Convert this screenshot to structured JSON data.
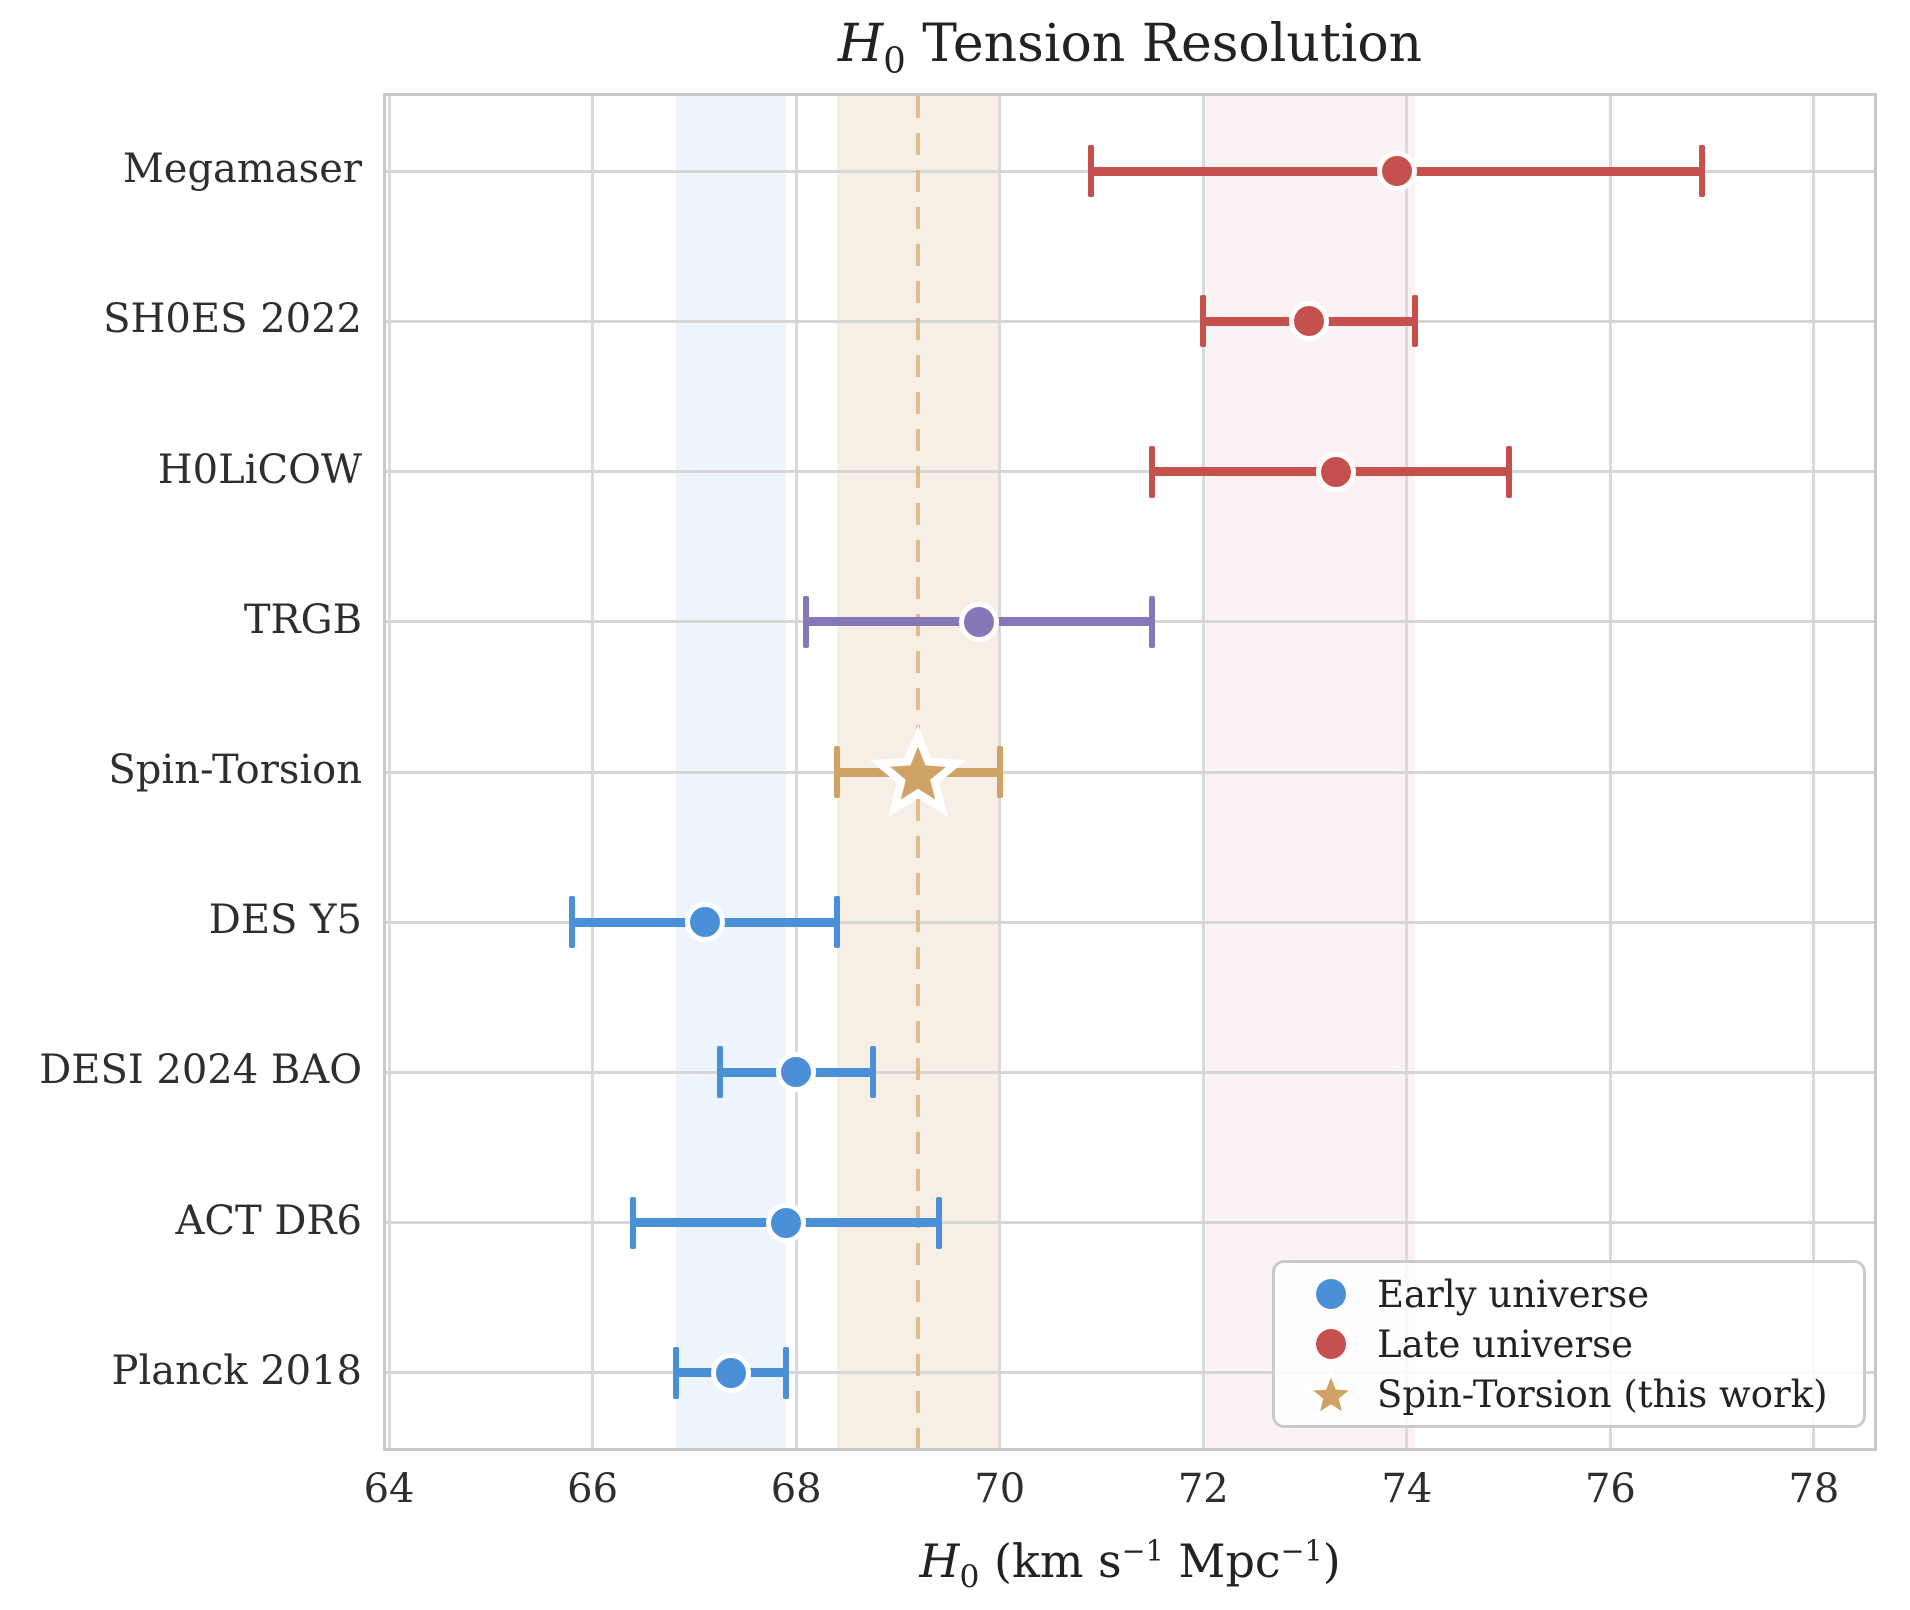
{
  "chart_data": {
    "type": "scatter",
    "title": {
      "h": "H",
      "sub": "0",
      "rest": " Tension Resolution"
    },
    "xlabel": {
      "h": "H",
      "sub": "0",
      "p1": " (km s",
      "sup1": "−1",
      "p2": " Mpc",
      "sup2": "−1",
      "p3": ")"
    },
    "xlim": [
      63.97,
      78.59
    ],
    "xticks": [
      64,
      66,
      68,
      70,
      72,
      74,
      76,
      78
    ],
    "grid": true,
    "categories_top_to_bottom": [
      "Megamaser",
      "SH0ES 2022",
      "H0LiCOW",
      "TRGB",
      "Spin-Torsion",
      "DES Y5",
      "DESI 2024 BAO",
      "ACT DR6",
      "Planck 2018"
    ],
    "points": [
      {
        "label": "Megamaser",
        "value": 73.9,
        "err_minus": 3.0,
        "err_plus": 3.0,
        "group": "late",
        "marker": "circle"
      },
      {
        "label": "SH0ES 2022",
        "value": 73.04,
        "err_minus": 1.04,
        "err_plus": 1.04,
        "group": "late",
        "marker": "circle"
      },
      {
        "label": "H0LiCOW",
        "value": 73.3,
        "err_minus": 1.8,
        "err_plus": 1.7,
        "group": "late",
        "marker": "circle"
      },
      {
        "label": "TRGB",
        "value": 69.8,
        "err_minus": 1.7,
        "err_plus": 1.7,
        "group": "trgb",
        "marker": "circle"
      },
      {
        "label": "Spin-Torsion",
        "value": 69.2,
        "err_minus": 0.8,
        "err_plus": 0.8,
        "group": "spin",
        "marker": "star"
      },
      {
        "label": "DES Y5",
        "value": 67.1,
        "err_minus": 1.3,
        "err_plus": 1.3,
        "group": "early",
        "marker": "circle"
      },
      {
        "label": "DESI 2024 BAO",
        "value": 68.0,
        "err_minus": 0.75,
        "err_plus": 0.75,
        "group": "early",
        "marker": "circle"
      },
      {
        "label": "ACT DR6",
        "value": 67.9,
        "err_minus": 1.5,
        "err_plus": 1.5,
        "group": "early",
        "marker": "circle"
      },
      {
        "label": "Planck 2018",
        "value": 67.36,
        "err_minus": 0.54,
        "err_plus": 0.54,
        "group": "early",
        "marker": "circle"
      }
    ],
    "group_colors": {
      "early": "#4A90D9",
      "late": "#C5514E",
      "trgb": "#8577B8",
      "spin": "#D0A265"
    },
    "bands": [
      {
        "name": "early-consensus-band",
        "from": 66.82,
        "to": 67.9,
        "color": "rgba(74,144,217,0.10)"
      },
      {
        "name": "spin-torsion-band",
        "from": 68.4,
        "to": 70.0,
        "color": "rgba(208,162,101,0.17)"
      },
      {
        "name": "late-consensus-band",
        "from": 72.0,
        "to": 74.08,
        "color": "rgba(197,81,78,0.07)"
      }
    ],
    "vline": {
      "x": 69.2,
      "color": "#e0bd8f"
    },
    "legend": [
      {
        "label": "Early universe",
        "marker": "circle",
        "color": "#4A90D9"
      },
      {
        "label": "Late universe",
        "marker": "circle",
        "color": "#C5514E"
      },
      {
        "label": "Spin-Torsion (this work)",
        "marker": "star",
        "color": "#D0A265"
      }
    ],
    "legend_position": "lower right"
  }
}
